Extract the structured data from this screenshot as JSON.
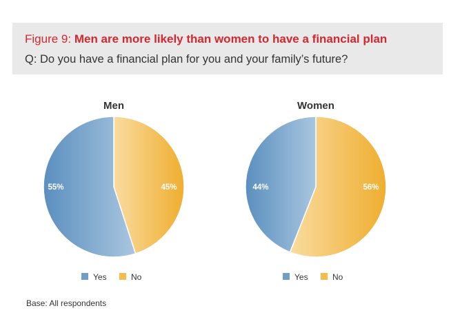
{
  "header": {
    "figure_prefix": "Figure 9:",
    "figure_title": "Men are more likely than women to have a financial plan",
    "question": "Q: Do you have a financial plan for you and your family’s future?"
  },
  "footer": {
    "base_note": "Base: All respondents"
  },
  "chart_data": [
    {
      "type": "pie",
      "title": "Men",
      "categories": [
        "Yes",
        "No"
      ],
      "values": [
        55,
        45
      ],
      "labels": [
        "55%",
        "45%"
      ],
      "colors": [
        "#6f9ec7",
        "#f3bc4c"
      ],
      "legend": "bottom"
    },
    {
      "type": "pie",
      "title": "Women",
      "categories": [
        "Yes",
        "No"
      ],
      "values": [
        44,
        56
      ],
      "labels": [
        "44%",
        "56%"
      ],
      "colors": [
        "#6f9ec7",
        "#f3bc4c"
      ],
      "legend": "bottom"
    }
  ],
  "colors": {
    "accent_red": "#d4272e",
    "yes_blue": "#6f9ec7",
    "no_yellow": "#f3bc4c",
    "header_band": "#e9e9e9"
  }
}
